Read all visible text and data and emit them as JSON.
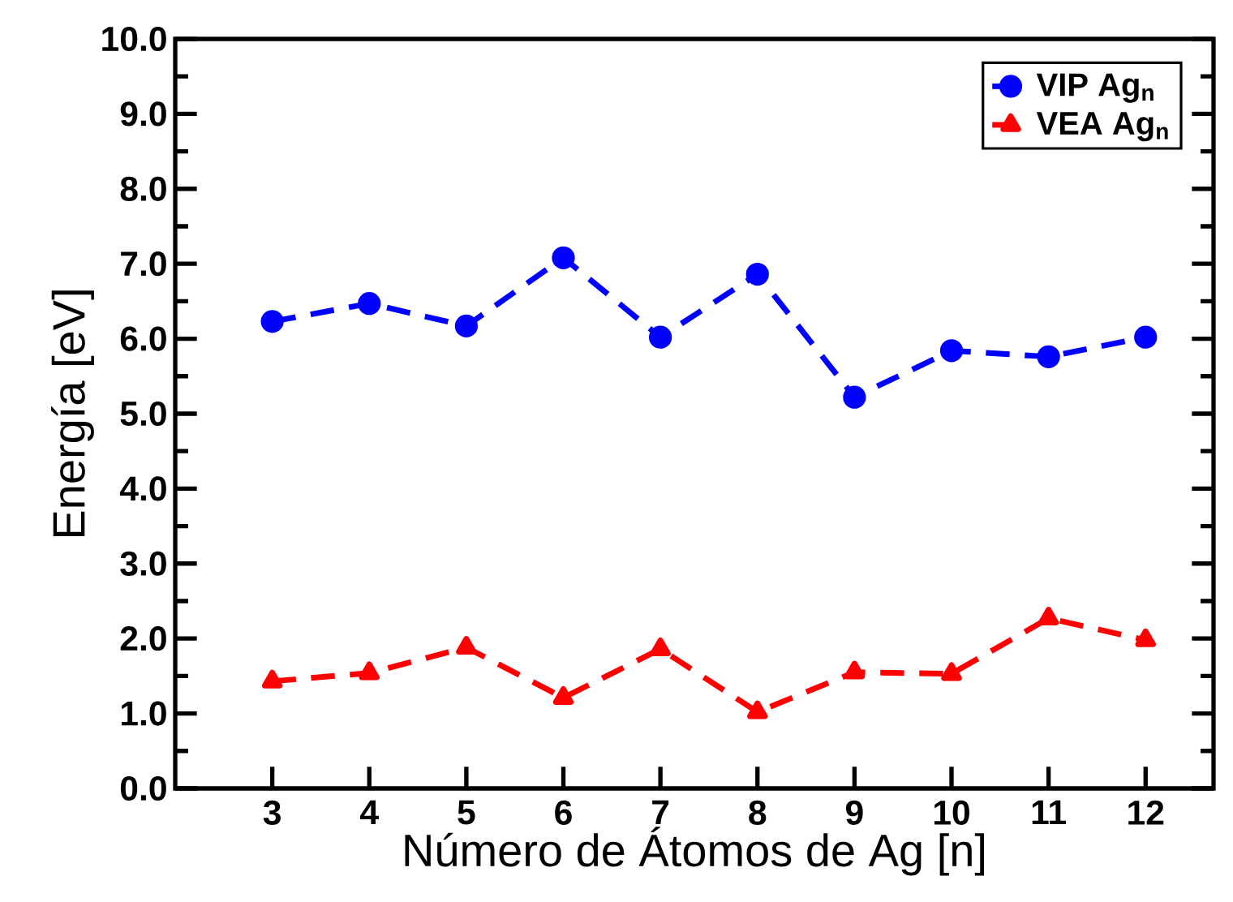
{
  "chart_data": {
    "type": "line",
    "xlabel": "Número de Átomos de Ag [n]",
    "ylabel": "Energía [eV]",
    "x": [
      3,
      4,
      5,
      6,
      7,
      8,
      9,
      10,
      11,
      12
    ],
    "series": [
      {
        "name": "VIP Ag$_{n}$",
        "color": "#0000ff",
        "marker": "circle",
        "values": [
          6.23,
          6.47,
          6.17,
          7.08,
          6.02,
          6.86,
          5.22,
          5.84,
          5.76,
          6.02
        ]
      },
      {
        "name": "VEA Ag$_{n}$",
        "color": "#ff0000",
        "marker": "triangle",
        "values": [
          1.43,
          1.54,
          1.88,
          1.21,
          1.86,
          1.02,
          1.55,
          1.53,
          2.27,
          1.98
        ]
      }
    ],
    "xlim": [
      2,
      12.7
    ],
    "xticks": [
      3,
      4,
      5,
      6,
      7,
      8,
      9,
      10,
      11,
      12
    ],
    "ylim": [
      0,
      10
    ],
    "yticks": [
      {
        "value": 0,
        "label": "0.0"
      },
      {
        "value": 1,
        "label": "1.0"
      },
      {
        "value": 2,
        "label": "2.0"
      },
      {
        "value": 3,
        "label": "3.0"
      },
      {
        "value": 4,
        "label": "4.0"
      },
      {
        "value": 5,
        "label": "5.0"
      },
      {
        "value": 6,
        "label": "6.0"
      },
      {
        "value": 7,
        "label": "7.0"
      },
      {
        "value": 8,
        "label": "8.0"
      },
      {
        "value": 9,
        "label": "9.0"
      },
      {
        "value": 10,
        "label": "10.0"
      }
    ],
    "line_style": "dashed",
    "legend": "top right",
    "grid": false
  }
}
